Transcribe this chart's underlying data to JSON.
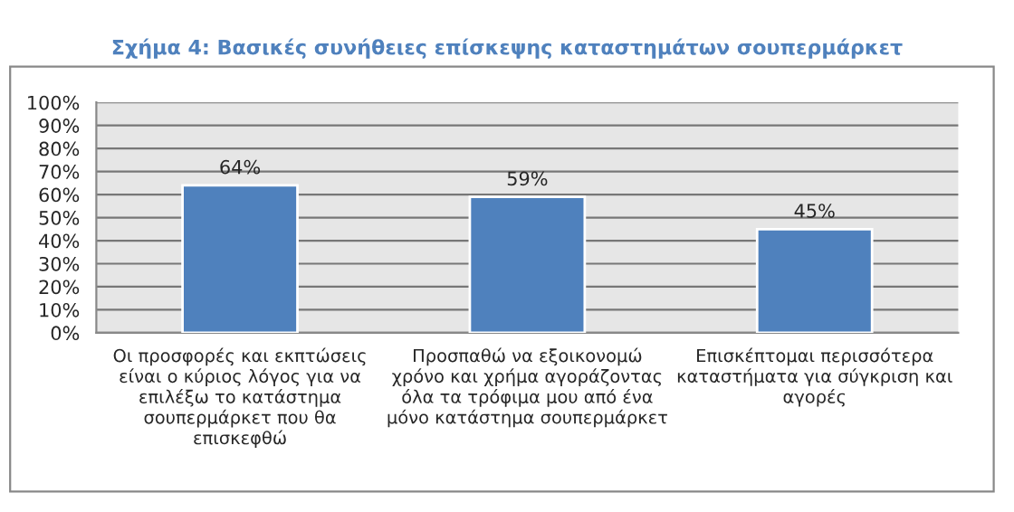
{
  "chart_data": {
    "type": "bar",
    "title": "Σχήμα 4: Βασικές συνήθειες επίσκεψης καταστημάτων σουπερμάρκετ",
    "categories": [
      "Οι προσφορές και εκπτώσεις\nείναι ο κύριος λόγος για να\nεπιλέξω το κατάστημα\nσουπερμάρκετ που θα\nεπισκεφθώ",
      "Προσπαθώ να εξοικονομώ\nχρόνο και χρήμα αγοράζοντας\nόλα τα τρόφιμα μου από ένα\nμόνο κατάστημα σουπερμάρκετ",
      "Επισκέπτομαι περισσότερα\nκαταστήματα για σύγκριση και\nαγορές"
    ],
    "values": [
      64,
      59,
      45
    ],
    "value_labels": [
      "64%",
      "59%",
      "45%"
    ],
    "color": "#4f81bd",
    "ylim": [
      0,
      100
    ],
    "yticks": [
      {
        "value": 0,
        "label": "0%"
      },
      {
        "value": 10,
        "label": "10%"
      },
      {
        "value": 20,
        "label": "20%"
      },
      {
        "value": 30,
        "label": "30%"
      },
      {
        "value": 40,
        "label": "40%"
      },
      {
        "value": 50,
        "label": "50%"
      },
      {
        "value": 60,
        "label": "60%"
      },
      {
        "value": 70,
        "label": "70%"
      },
      {
        "value": 80,
        "label": "80%"
      },
      {
        "value": 90,
        "label": "90%"
      },
      {
        "value": 100,
        "label": "100%"
      }
    ],
    "grid": "y"
  }
}
